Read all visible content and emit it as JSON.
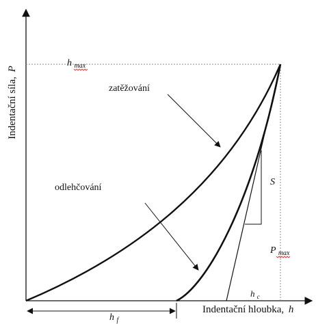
{
  "axes": {
    "y_label": "Indentační síla,",
    "y_symbol": "P",
    "x_label": "Indentační hloubka,",
    "x_symbol": "h"
  },
  "curves": {
    "loading_label": "zatěžování",
    "unloading_label": "odlehčování"
  },
  "annotations": {
    "h_max_main": "h",
    "h_max_sub": "max",
    "p_max_main": "P",
    "p_max_sub": "max",
    "stiffness": "S",
    "h_c_main": "h",
    "h_c_sub": "c",
    "h_f_main": "h",
    "h_f_sub": "f"
  },
  "colors": {
    "ink": "#111111",
    "guide": "#888888",
    "spellcheck_underline": "#dd3333"
  }
}
